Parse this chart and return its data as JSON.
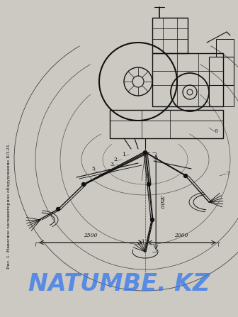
{
  "bg_color": "#ccc9c3",
  "watermark_text": "NATUMBE. KZ",
  "watermark_color": "#3377ee",
  "watermark_alpha": 0.75,
  "side_text": "Рис. 1. Навесное экскаваторное оборудование БЛ-21.",
  "dim_2500": "2500",
  "dim_3800": "3800",
  "dim_2000": "2000",
  "line_color": "#111111",
  "lw": 0.7
}
